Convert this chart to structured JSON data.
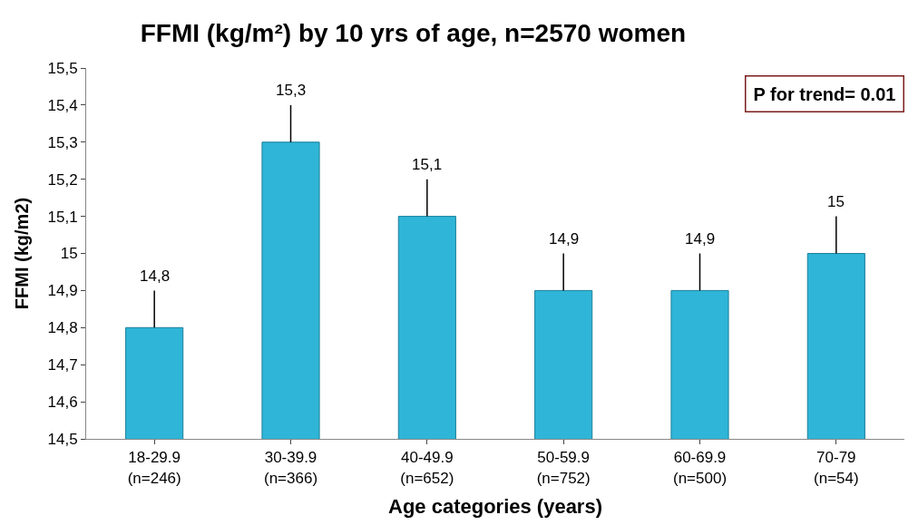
{
  "chart_data": {
    "type": "bar",
    "title": "FFMI (kg/m²) by 10 yrs of age, n=2570 women",
    "xlabel": "Age categories (years)",
    "ylabel": "FFMI (kg/m2)",
    "categories": [
      "18-29.9\n(n=246)",
      "30-39.9\n(n=366)",
      "40-49.9\n(n=652)",
      "50-59.9\n(n=752)",
      "60-69.9\n(n=500)",
      "70-79\n(n=54)"
    ],
    "values": [
      14.8,
      15.3,
      15.1,
      14.9,
      14.9,
      15.0
    ],
    "value_labels": [
      "14,8",
      "15,3",
      "15,1",
      "14,9",
      "14,9",
      "15"
    ],
    "errors": [
      [
        14.8,
        14.9
      ],
      [
        15.3,
        15.4
      ],
      [
        15.1,
        15.2
      ],
      [
        14.9,
        15.0
      ],
      [
        14.9,
        15.0
      ],
      [
        15.0,
        15.1
      ]
    ],
    "color": "#2fb5d8",
    "ylim": [
      14.5,
      15.5
    ],
    "yticks": [
      {
        "value": 14.5,
        "label": "14,5"
      },
      {
        "value": 14.6,
        "label": "14,6"
      },
      {
        "value": 14.7,
        "label": "14,7"
      },
      {
        "value": 14.8,
        "label": "14,8"
      },
      {
        "value": 14.9,
        "label": "14,9"
      },
      {
        "value": 15,
        "label": "15"
      },
      {
        "value": 15.1,
        "label": "15,1"
      },
      {
        "value": 15.2,
        "label": "15,2"
      },
      {
        "value": 15.3,
        "label": "15,3"
      },
      {
        "value": 15.4,
        "label": "15,4"
      },
      {
        "value": 15.5,
        "label": "15,5"
      }
    ],
    "annotations": [
      "P for trend= 0.01"
    ]
  }
}
